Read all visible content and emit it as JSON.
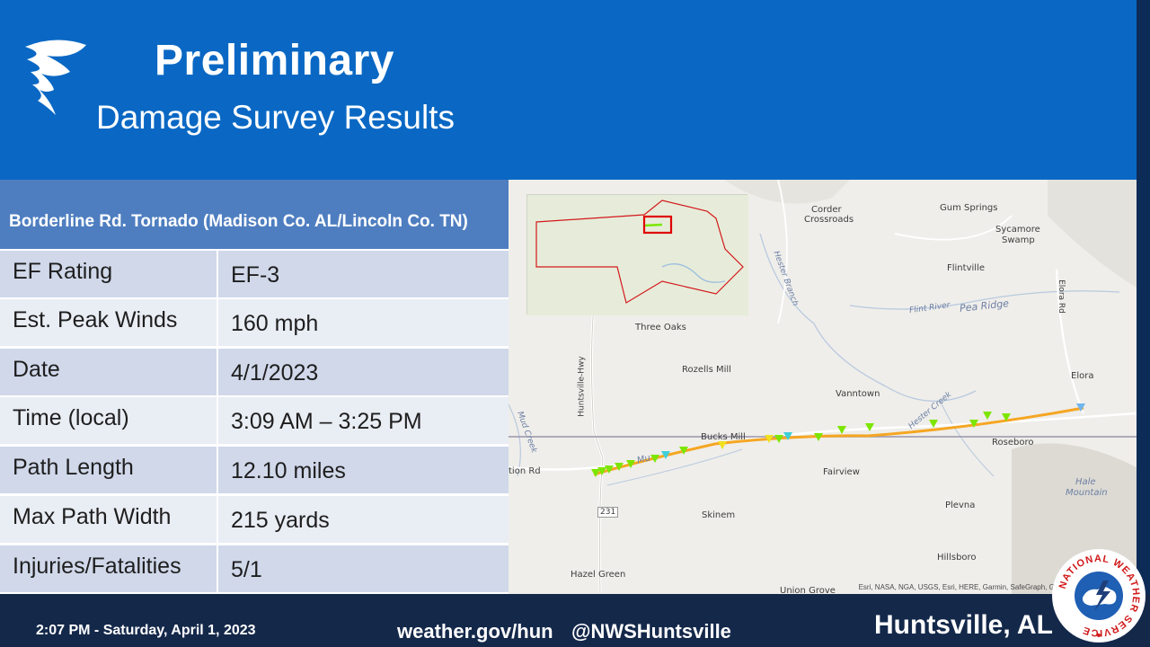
{
  "header": {
    "title": "Preliminary",
    "subtitle": "Damage Survey Results"
  },
  "table": {
    "heading": "Borderline Rd. Tornado (Madison Co. AL/Lincoln Co. TN)",
    "rows": [
      {
        "label": "EF Rating",
        "value": "EF-3"
      },
      {
        "label": "Est. Peak Winds",
        "value": "160 mph"
      },
      {
        "label": "Date",
        "value": "4/1/2023"
      },
      {
        "label": "Time (local)",
        "value": "3:09 AM – 3:25 PM"
      },
      {
        "label": "Path Length",
        "value": "12.10 miles"
      },
      {
        "label": "Max Path Width",
        "value": "215 yards"
      },
      {
        "label": "Injuries/Fatalities",
        "value": "5/1"
      }
    ]
  },
  "map": {
    "places": [
      "Corder",
      "Crossroads",
      "Gum Springs",
      "Sycamore",
      "Swamp",
      "Flintville",
      "Pea Ridge",
      "Three Oaks",
      "Rozells Mill",
      "Vanntown",
      "Elora",
      "Bucks Mill",
      "Roseboro",
      "Fairview",
      "Hale",
      "Mountain",
      "Skinem",
      "Plevna",
      "Hillsboro",
      "Hazel Green",
      "Union Grove"
    ],
    "streams": [
      "Hester Branch",
      "Flint River",
      "Huntsville-Hwy",
      "Elora Rd",
      "Hester Creek",
      "Mud Creek"
    ],
    "roads": [
      "231",
      "tion Rd",
      "Mu"
    ],
    "attribution": "Esri, NASA, NGA, USGS, Esri, HERE, Garmin, SafeGraph, GeoTechnologies, Inc, ME",
    "track_color": "#f5a623"
  },
  "footer": {
    "timestamp": "2:07 PM - Saturday, April 1, 2023",
    "website": "weather.gov/hun",
    "twitter": "@NWSHuntsville",
    "office": "Huntsville, AL"
  },
  "logo": {
    "icon": "nws-logo",
    "text": "NATIONAL WEATHER SERVICE"
  }
}
